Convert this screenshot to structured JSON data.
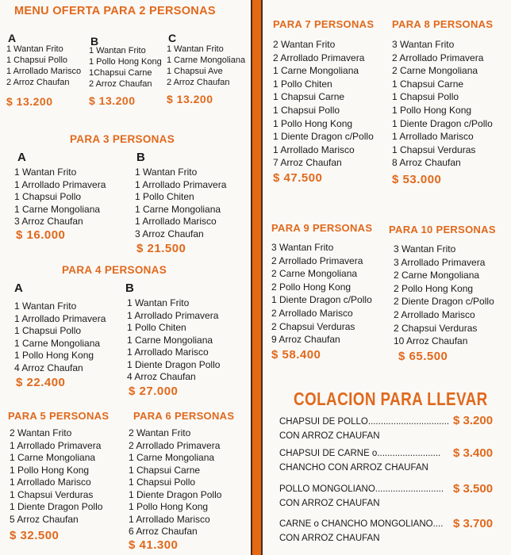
{
  "menu_2": {
    "title": "MENU OFERTA PARA 2 PERSONAS",
    "options": [
      {
        "letter": "A",
        "items": [
          "1 Wantan Frito",
          "1 Chapsui Pollo",
          "1 Arrollado Marisco",
          "2 Arroz Chaufan"
        ],
        "price": "$ 13.200"
      },
      {
        "letter": "B",
        "items": [
          "1 Wantan Frito",
          "1 Pollo Hong Kong",
          "1Chapsui Carne",
          "2 Arroz Chaufan"
        ],
        "price": "$ 13.200"
      },
      {
        "letter": "C",
        "items": [
          "1 Wantan Frito",
          "1 Carne Mongoliana",
          "1 Chapsui Ave",
          "2 Arroz Chaufan"
        ],
        "price": "$ 13.200"
      }
    ]
  },
  "menu_3": {
    "title": "PARA 3 PERSONAS",
    "options": [
      {
        "letter": "A",
        "items": [
          "1 Wantan Frito",
          "1 Arrollado Primavera",
          "1 Chapsui Pollo",
          "1 Carne Mongoliana",
          "3 Arroz Chaufan"
        ],
        "price": "$ 16.000"
      },
      {
        "letter": "B",
        "items": [
          "1 Wantan Frito",
          "1 Arrollado Primavera",
          "1 Pollo Chiten",
          "1 Carne Mongoliana",
          "1 Arrollado Marisco",
          "3 Arroz Chaufan"
        ],
        "price": "$ 21.500"
      }
    ]
  },
  "menu_4": {
    "title": "PARA 4 PERSONAS",
    "options": [
      {
        "letter": "A",
        "items": [
          "1 Wantan Frito",
          "1 Arrollado Primavera",
          "1 Chapsui Pollo",
          "1 Carne Mongoliana",
          "1 Pollo Hong Kong",
          "4 Arroz Chaufan"
        ],
        "price": "$ 22.400"
      },
      {
        "letter": "B",
        "items": [
          "1 Wantan Frito",
          "1 Arrollado Primavera",
          "1 Pollo Chiten",
          "1 Carne Mongoliana",
          "1 Arrollado Marisco",
          "1 Diente Dragon Pollo",
          "4 Arroz Chaufan"
        ],
        "price": "$ 27.000"
      }
    ]
  },
  "menu_5": {
    "title": "PARA 5 PERSONAS",
    "items": [
      "2 Wantan Frito",
      "1 Arrollado Primavera",
      "1 Carne Mongoliana",
      "1 Pollo Hong Kong",
      "1 Arrollado Marisco",
      "1 Chapsui Verduras",
      "1 Diente Dragon Pollo",
      "5 Arroz Chaufan"
    ],
    "price": "$ 32.500"
  },
  "menu_6": {
    "title": "PARA 6 PERSONAS",
    "items": [
      "2 Wantan Frito",
      "2 Arrollado Primavera",
      "1 Carne Mongoliana",
      "1 Chapsui Carne",
      "1 Chapsui Pollo",
      "1 Diente Dragon Pollo",
      "1 Pollo Hong Kong",
      "1 Arrollado Marisco",
      "6 Arroz Chaufan"
    ],
    "price": "$ 41.300"
  },
  "menu_7": {
    "title": "PARA 7 PERSONAS",
    "items": [
      "2 Wantan Frito",
      "2 Arrollado Primavera",
      "1 Carne Mongoliana",
      "1 Pollo Chiten",
      "1 Chapsui Carne",
      "1 Chapsui Pollo",
      "1 Pollo Hong Kong",
      "1 Diente Dragon c/Pollo",
      "1 Arrollado Marisco",
      "7 Arroz Chaufan"
    ],
    "price": "$ 47.500"
  },
  "menu_8": {
    "title": "PARA 8 PERSONAS",
    "items": [
      "3 Wantan Frito",
      "2 Arrollado Primavera",
      "2 Carne Mongoliana",
      "1 Chapsui Carne",
      "1 Chapsui Pollo",
      "1 Pollo Hong Kong",
      "1 Diente Dragon c/Pollo",
      "1 Arrollado Marisco",
      "1 Chapsui Verduras",
      "8 Arroz Chaufan"
    ],
    "price": "$ 53.000"
  },
  "menu_9": {
    "title": "PARA 9 PERSONAS",
    "items": [
      "3 Wantan Frito",
      "2 Arrollado Primavera",
      "2 Carne Mongoliana",
      "2 Pollo Hong Kong",
      "1 Diente Dragon c/Pollo",
      "2 Arrollado Marisco",
      "2 Chapsui Verduras",
      "9 Arroz Chaufan"
    ],
    "price": "$ 58.400"
  },
  "menu_10": {
    "title": "PARA 10 PERSONAS",
    "items": [
      "3 Wantan Frito",
      "3 Arrollado Primavera",
      "2 Carne Mongoliana",
      "2 Pollo Hong Kong",
      "2 Diente Dragon c/Pollo",
      "2 Arrollado Marisco",
      "2 Chapsui Verduras",
      "10 Arroz Chaufan"
    ],
    "price": "$ 65.500"
  },
  "takeaway": {
    "title": "COLACION PARA LLEVAR",
    "items": [
      {
        "line1": "CHAPSUI DE POLLO................................",
        "line2": "CON ARROZ CHAUFAN",
        "price": "$ 3.200"
      },
      {
        "line1": "CHAPSUI DE CARNE o.........................",
        "line2": "CHANCHO CON ARROZ CHAUFAN",
        "price": "$ 3.400"
      },
      {
        "line1": "POLLO MONGOLIANO...........................",
        "line2": "CON ARROZ CHAUFAN",
        "price": "$ 3.500"
      },
      {
        "line1": "CARNE o CHANCHO MONGOLIANO....",
        "line2": "CON ARROZ CHAUFAN",
        "price": "$ 3.700"
      }
    ]
  },
  "colors": {
    "accent": "#e0691c",
    "divider": "#e26a14"
  }
}
